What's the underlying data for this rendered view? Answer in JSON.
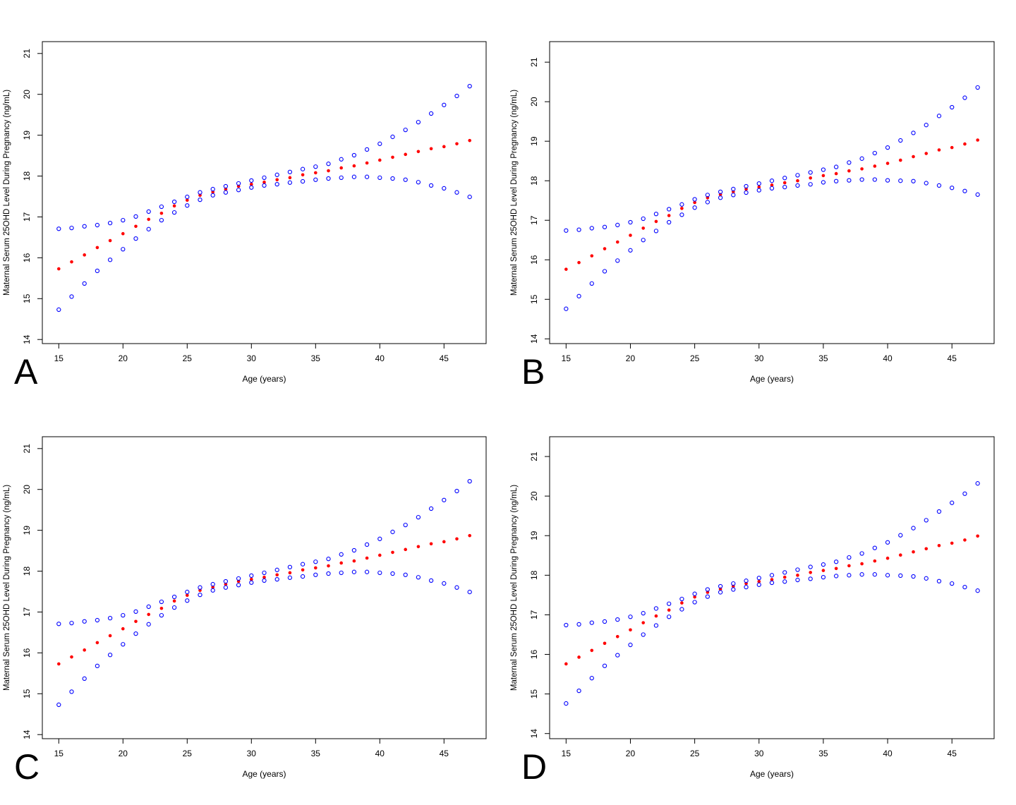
{
  "colors": {
    "mean": "#ff0000",
    "bound": "#0000ff",
    "axis": "#000000"
  },
  "chart_data": [
    {
      "panel_label": "A",
      "type": "scatter",
      "xlabel": "Age (years)",
      "ylabel": "Maternal Serum 25OHD Level During Pregnancy (ng/mL)",
      "xlim": [
        13.72,
        48.28
      ],
      "ylim": [
        13.9,
        21.29
      ],
      "xticks": [
        15,
        20,
        25,
        30,
        35,
        40,
        45
      ],
      "yticks": [
        14,
        15,
        16,
        17,
        18,
        19,
        20,
        21
      ],
      "grid": false,
      "x": [
        15,
        16,
        17,
        18,
        19,
        20,
        21,
        22,
        23,
        24,
        25,
        26,
        27,
        28,
        29,
        30,
        31,
        32,
        33,
        34,
        35,
        36,
        37,
        38,
        39,
        40,
        41,
        42,
        43,
        44,
        45,
        46,
        47
      ],
      "series": [
        {
          "marker": "filled",
          "color": "#ff0000",
          "values": [
            15.73,
            15.9,
            16.07,
            16.25,
            16.42,
            16.59,
            16.77,
            16.94,
            17.09,
            17.27,
            17.41,
            17.53,
            17.61,
            17.68,
            17.75,
            17.8,
            17.85,
            17.91,
            17.96,
            18.03,
            18.08,
            18.13,
            18.2,
            18.25,
            18.32,
            18.39,
            18.46,
            18.53,
            18.6,
            18.67,
            18.72,
            18.79,
            18.87
          ]
        },
        {
          "marker": "open",
          "color": "#0000ff",
          "values": [
            16.71,
            16.73,
            16.77,
            16.8,
            16.85,
            16.92,
            17.01,
            17.13,
            17.25,
            17.37,
            17.49,
            17.6,
            17.68,
            17.75,
            17.82,
            17.89,
            17.96,
            18.03,
            18.1,
            18.17,
            18.23,
            18.3,
            18.41,
            18.51,
            18.65,
            18.79,
            18.96,
            19.13,
            19.32,
            19.53,
            19.74,
            19.96,
            20.2
          ]
        },
        {
          "marker": "open",
          "color": "#0000ff",
          "values": [
            14.73,
            15.05,
            15.37,
            15.68,
            15.95,
            16.21,
            16.47,
            16.7,
            16.92,
            17.11,
            17.28,
            17.42,
            17.53,
            17.6,
            17.66,
            17.72,
            17.77,
            17.8,
            17.84,
            17.87,
            17.91,
            17.94,
            17.96,
            17.98,
            17.98,
            17.96,
            17.94,
            17.91,
            17.85,
            17.77,
            17.7,
            17.6,
            17.49
          ]
        }
      ]
    },
    {
      "panel_label": "B",
      "type": "scatter",
      "xlabel": "Age (years)",
      "ylabel": "Maternal Serum 25OHD Level During Pregnancy (ng/mL)",
      "xlim": [
        13.72,
        48.28
      ],
      "ylim": [
        13.88,
        21.52
      ],
      "xticks": [
        15,
        20,
        25,
        30,
        35,
        40,
        45
      ],
      "yticks": [
        14,
        15,
        16,
        17,
        18,
        19,
        20,
        21
      ],
      "grid": false,
      "x": [
        15,
        16,
        17,
        18,
        19,
        20,
        21,
        22,
        23,
        24,
        25,
        26,
        27,
        28,
        29,
        30,
        31,
        32,
        33,
        34,
        35,
        36,
        37,
        38,
        39,
        40,
        41,
        42,
        43,
        44,
        45,
        46,
        47
      ],
      "series": [
        {
          "marker": "filled",
          "color": "#ff0000",
          "values": [
            15.76,
            15.93,
            16.1,
            16.28,
            16.45,
            16.62,
            16.8,
            16.97,
            17.12,
            17.3,
            17.45,
            17.57,
            17.65,
            17.72,
            17.79,
            17.84,
            17.89,
            17.95,
            18.0,
            18.07,
            18.13,
            18.18,
            18.25,
            18.3,
            18.37,
            18.44,
            18.52,
            18.61,
            18.69,
            18.78,
            18.84,
            18.93,
            19.03
          ]
        },
        {
          "marker": "open",
          "color": "#0000ff",
          "values": [
            16.74,
            16.76,
            16.8,
            16.83,
            16.88,
            16.95,
            17.04,
            17.16,
            17.28,
            17.4,
            17.53,
            17.64,
            17.72,
            17.79,
            17.86,
            17.93,
            18.0,
            18.07,
            18.14,
            18.21,
            18.28,
            18.35,
            18.46,
            18.56,
            18.7,
            18.84,
            19.02,
            19.21,
            19.41,
            19.64,
            19.86,
            20.1,
            20.36
          ]
        },
        {
          "marker": "open",
          "color": "#0000ff",
          "values": [
            14.76,
            15.08,
            15.4,
            15.71,
            15.98,
            16.24,
            16.5,
            16.73,
            16.95,
            17.14,
            17.32,
            17.46,
            17.57,
            17.64,
            17.7,
            17.76,
            17.81,
            17.84,
            17.88,
            17.91,
            17.96,
            17.99,
            18.01,
            18.03,
            18.03,
            18.01,
            18.0,
            17.99,
            17.94,
            17.88,
            17.82,
            17.74,
            17.65
          ]
        }
      ]
    },
    {
      "panel_label": "C",
      "type": "scatter",
      "xlabel": "Age (years)",
      "ylabel": "Maternal Serum 25OHD Level During Pregnancy (ng/mL)",
      "xlim": [
        13.72,
        48.28
      ],
      "ylim": [
        13.9,
        21.29
      ],
      "xticks": [
        15,
        20,
        25,
        30,
        35,
        40,
        45
      ],
      "yticks": [
        14,
        15,
        16,
        17,
        18,
        19,
        20,
        21
      ],
      "grid": false,
      "x": [
        15,
        16,
        17,
        18,
        19,
        20,
        21,
        22,
        23,
        24,
        25,
        26,
        27,
        28,
        29,
        30,
        31,
        32,
        33,
        34,
        35,
        36,
        37,
        38,
        39,
        40,
        41,
        42,
        43,
        44,
        45,
        46,
        47
      ],
      "series": [
        {
          "marker": "filled",
          "color": "#ff0000",
          "values": [
            15.73,
            15.9,
            16.07,
            16.25,
            16.42,
            16.59,
            16.77,
            16.94,
            17.09,
            17.27,
            17.41,
            17.53,
            17.61,
            17.68,
            17.75,
            17.8,
            17.85,
            17.91,
            17.96,
            18.03,
            18.08,
            18.13,
            18.2,
            18.25,
            18.32,
            18.39,
            18.46,
            18.53,
            18.6,
            18.67,
            18.72,
            18.79,
            18.87
          ]
        },
        {
          "marker": "open",
          "color": "#0000ff",
          "values": [
            16.71,
            16.73,
            16.77,
            16.8,
            16.85,
            16.92,
            17.01,
            17.13,
            17.25,
            17.37,
            17.49,
            17.6,
            17.68,
            17.75,
            17.82,
            17.89,
            17.96,
            18.03,
            18.1,
            18.17,
            18.23,
            18.3,
            18.41,
            18.51,
            18.65,
            18.79,
            18.96,
            19.13,
            19.32,
            19.53,
            19.74,
            19.96,
            20.2
          ]
        },
        {
          "marker": "open",
          "color": "#0000ff",
          "values": [
            14.73,
            15.05,
            15.37,
            15.68,
            15.95,
            16.21,
            16.47,
            16.7,
            16.92,
            17.11,
            17.28,
            17.42,
            17.53,
            17.6,
            17.66,
            17.72,
            17.77,
            17.8,
            17.84,
            17.87,
            17.91,
            17.94,
            17.96,
            17.98,
            17.98,
            17.96,
            17.94,
            17.91,
            17.85,
            17.77,
            17.7,
            17.6,
            17.49
          ]
        }
      ]
    },
    {
      "panel_label": "D",
      "type": "scatter",
      "xlabel": "Age (years)",
      "ylabel": "Maternal Serum 25OHD Level During Pregnancy (ng/mL)",
      "xlim": [
        13.72,
        48.28
      ],
      "ylim": [
        13.87,
        21.5
      ],
      "xticks": [
        15,
        20,
        25,
        30,
        35,
        40,
        45
      ],
      "yticks": [
        14,
        15,
        16,
        17,
        18,
        19,
        20,
        21
      ],
      "grid": false,
      "x": [
        15,
        16,
        17,
        18,
        19,
        20,
        21,
        22,
        23,
        24,
        25,
        26,
        27,
        28,
        29,
        30,
        31,
        32,
        33,
        34,
        35,
        36,
        37,
        38,
        39,
        40,
        41,
        42,
        43,
        44,
        45,
        46,
        47
      ],
      "series": [
        {
          "marker": "filled",
          "color": "#ff0000",
          "values": [
            15.76,
            15.93,
            16.1,
            16.28,
            16.45,
            16.62,
            16.8,
            16.97,
            17.12,
            17.3,
            17.45,
            17.57,
            17.65,
            17.72,
            17.79,
            17.84,
            17.89,
            17.95,
            18.0,
            18.07,
            18.12,
            18.17,
            18.24,
            18.29,
            18.36,
            18.43,
            18.51,
            18.59,
            18.67,
            18.75,
            18.81,
            18.89,
            18.99
          ]
        },
        {
          "marker": "open",
          "color": "#0000ff",
          "values": [
            16.74,
            16.76,
            16.8,
            16.83,
            16.88,
            16.95,
            17.04,
            17.16,
            17.28,
            17.4,
            17.53,
            17.64,
            17.72,
            17.79,
            17.86,
            17.93,
            18.0,
            18.07,
            18.14,
            18.21,
            18.27,
            18.34,
            18.45,
            18.55,
            18.69,
            18.83,
            19.01,
            19.19,
            19.39,
            19.61,
            19.83,
            20.06,
            20.32
          ]
        },
        {
          "marker": "open",
          "color": "#0000ff",
          "values": [
            14.76,
            15.08,
            15.4,
            15.71,
            15.98,
            16.24,
            16.5,
            16.73,
            16.95,
            17.14,
            17.32,
            17.46,
            17.57,
            17.64,
            17.7,
            17.76,
            17.81,
            17.84,
            17.88,
            17.91,
            17.95,
            17.98,
            18.0,
            18.02,
            18.02,
            18.0,
            17.99,
            17.97,
            17.92,
            17.85,
            17.79,
            17.7,
            17.61
          ]
        }
      ]
    }
  ]
}
